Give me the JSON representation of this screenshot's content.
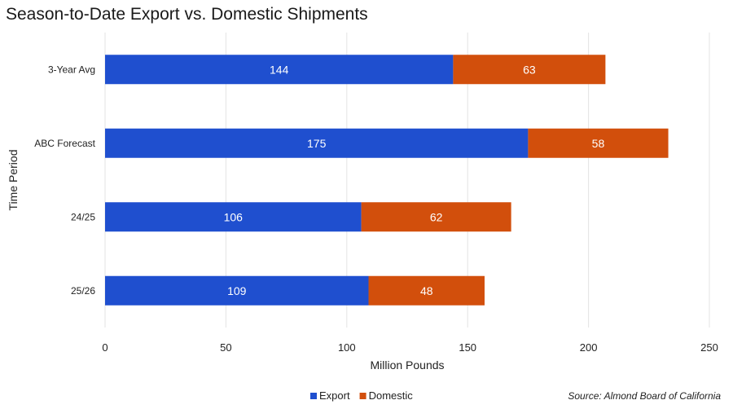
{
  "chart_data": {
    "type": "bar",
    "orientation": "horizontal",
    "stacked": true,
    "title": "Season-to-Date Export vs. Domestic Shipments",
    "xlabel": "Million Pounds",
    "ylabel": "Time Period",
    "categories": [
      "3-Year Avg",
      "ABC Forecast",
      "24/25",
      "25/26"
    ],
    "series": [
      {
        "name": "Export",
        "color": "#1f4fcf",
        "values": [
          144,
          175,
          106,
          109
        ]
      },
      {
        "name": "Domestic",
        "color": "#d24f0c",
        "values": [
          63,
          58,
          62,
          48
        ]
      }
    ],
    "xlim": [
      0,
      250
    ],
    "xticks": [
      0,
      50,
      100,
      150,
      200,
      250
    ],
    "grid": true,
    "legend": "bottom-center",
    "source": "Source: Almond Board of California"
  }
}
